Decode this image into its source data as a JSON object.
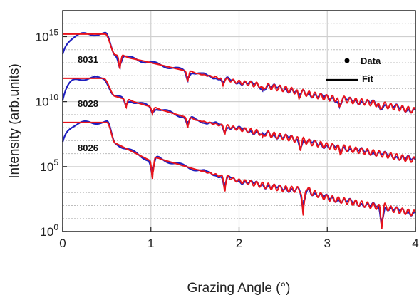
{
  "chart_data": {
    "type": "line",
    "xlabel": "Grazing Angle (°)",
    "ylabel": "Intensity (arb.units)",
    "xlim": [
      0,
      4
    ],
    "ylim_log10": [
      0,
      17
    ],
    "y_scale": "log",
    "grid": true,
    "x_ticks": [
      "0",
      "1",
      "2",
      "3",
      "4"
    ],
    "y_ticks": [
      {
        "base": "10",
        "exp": "0",
        "log": 0
      },
      {
        "base": "10",
        "exp": "5",
        "log": 5
      },
      {
        "base": "10",
        "exp": "10",
        "log": 10
      },
      {
        "base": "10",
        "exp": "15",
        "log": 15
      }
    ],
    "legend": {
      "placement": "top-right",
      "entries": [
        {
          "label": "Data",
          "marker": "dot",
          "color": "#000000"
        },
        {
          "label": "Fit",
          "marker": "line",
          "color": "#000000"
        }
      ]
    },
    "series_colors": {
      "data": "#1f1fbf",
      "fit": "#e8141c"
    },
    "samples": [
      {
        "label": "8031",
        "plateau_log": 15.2,
        "critical_angle": 0.48,
        "tail": [
          [
            0.6,
            13.6
          ],
          [
            1.0,
            13.0
          ],
          [
            1.5,
            12.2
          ],
          [
            2.0,
            11.5
          ],
          [
            2.5,
            11.0
          ],
          [
            3.0,
            10.3
          ],
          [
            3.5,
            9.9
          ],
          [
            4.0,
            9.3
          ]
        ],
        "features": [
          [
            0.65,
            -1.0
          ],
          [
            1.42,
            -0.8
          ],
          [
            1.82,
            -0.5
          ],
          [
            2.27,
            -0.5
          ],
          [
            2.68,
            -0.5
          ],
          [
            3.14,
            -0.7
          ],
          [
            3.6,
            -0.4
          ]
        ]
      },
      {
        "label": "8028",
        "plateau_log": 11.8,
        "critical_angle": 0.46,
        "tail": [
          [
            0.6,
            10.4
          ],
          [
            1.0,
            9.6
          ],
          [
            1.5,
            8.6
          ],
          [
            2.0,
            7.9
          ],
          [
            2.5,
            7.3
          ],
          [
            3.0,
            6.6
          ],
          [
            3.5,
            6.1
          ],
          [
            4.0,
            5.5
          ]
        ],
        "features": [
          [
            0.72,
            -0.6
          ],
          [
            1.02,
            -0.5
          ],
          [
            1.42,
            -0.8
          ],
          [
            1.84,
            -0.5
          ],
          [
            2.27,
            -0.5
          ],
          [
            2.7,
            -0.6
          ],
          [
            3.15,
            -0.4
          ]
        ]
      },
      {
        "label": "8026",
        "plateau_log": 8.4,
        "critical_angle": 0.5,
        "tail": [
          [
            0.6,
            6.8
          ],
          [
            0.98,
            5.5
          ],
          [
            1.1,
            5.6
          ],
          [
            1.5,
            4.8
          ],
          [
            2.0,
            3.9
          ],
          [
            2.5,
            3.3
          ],
          [
            2.75,
            3.2
          ],
          [
            3.0,
            2.6
          ],
          [
            3.5,
            2.0
          ],
          [
            4.0,
            1.4
          ]
        ],
        "features": [
          [
            1.02,
            -1.5
          ],
          [
            1.84,
            -1.0
          ],
          [
            2.73,
            -2.2
          ],
          [
            3.62,
            -1.5
          ]
        ]
      }
    ]
  }
}
